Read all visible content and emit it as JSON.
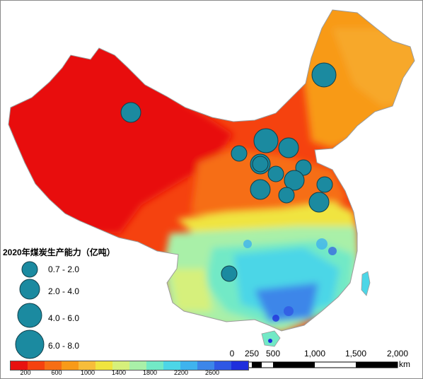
{
  "legend": {
    "title": "2020年煤炭生产能力（亿吨）",
    "classes": [
      {
        "label": "0.7 - 2.0"
      },
      {
        "label": "2.0 - 4.0"
      },
      {
        "label": "4.0 - 6.0"
      },
      {
        "label": "6.0 - 8.0"
      }
    ]
  },
  "colorbar": {
    "colors": [
      "#e8110f",
      "#f5420f",
      "#f66e15",
      "#f89a18",
      "#f7bd3a",
      "#f0e43f",
      "#d6f07b",
      "#a9f0a8",
      "#72e9c6",
      "#4cd6e7",
      "#3fb3ee",
      "#3c86e9",
      "#2f58e4",
      "#1f2fdc"
    ],
    "ticks": [
      "200",
      "600",
      "1000",
      "1400",
      "1800",
      "2200",
      "2600"
    ]
  },
  "scalebar": {
    "ticks": [
      "0",
      "250",
      "500",
      "1,000",
      "1,500",
      "2,000"
    ],
    "unit": "km"
  },
  "points": [
    {
      "size_class": 2
    },
    {
      "size_class": 3
    },
    {
      "size_class": 1
    },
    {
      "size_class": 3
    },
    {
      "size_class": 2
    },
    {
      "size_class": 2
    },
    {
      "size_class": 1
    },
    {
      "size_class": 1
    },
    {
      "size_class": 2
    },
    {
      "size_class": 2
    },
    {
      "size_class": 1
    },
    {
      "size_class": 1
    },
    {
      "size_class": 2
    },
    {
      "size_class": 1
    },
    {
      "size_class": 1
    }
  ],
  "colors": {
    "point_fill": "#1b8aa0",
    "point_stroke": "#103f4a"
  }
}
